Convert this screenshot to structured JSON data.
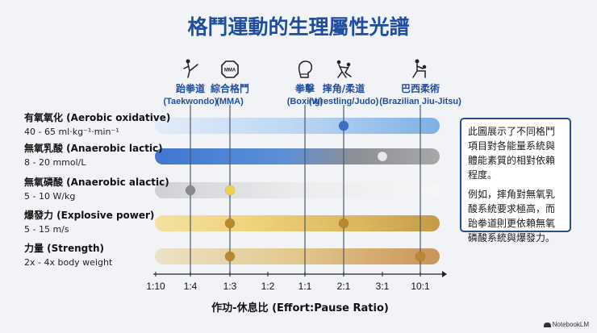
{
  "title": "格鬥運動的生理屬性光譜",
  "callout": {
    "paragraphs": [
      "此圖展示了不同格鬥項目對各能量系統與體能素質的相對依賴程度。",
      "例如，摔角對無氧乳酸系統要求極高，而跆拳道則更依賴無氧磷酸系統與爆發力。"
    ]
  },
  "brand": "NotebookLM",
  "colors": {
    "title": "#1f4e9e",
    "label_blue": "#1f4e9e",
    "dot_dark_blue": "#3b6fc4",
    "dot_gray": "#8a8a8a",
    "dot_light": "#e8e8e8",
    "dot_yellow": "#f2cf4a",
    "dot_gold": "#b8892e"
  },
  "chart_data": {
    "type": "scatter",
    "xlabel": "作功-休息比 (Effort:Pause Ratio)",
    "x_ticks": [
      "1:10",
      "1:4",
      "1:3",
      "1:2",
      "1:1",
      "2:1",
      "3:1",
      "10:1"
    ],
    "sports": [
      {
        "name_zh": "跆拳道",
        "name_en": "(Taekwondo)",
        "ratio": "1:4",
        "icon": "kick-icon"
      },
      {
        "name_zh": "綜合格鬥",
        "name_en": "(MMA)",
        "ratio": "1:3",
        "icon": "octagon-mma-icon"
      },
      {
        "name_zh": "拳擊",
        "name_en": "(Boxing)",
        "ratio": "1:1",
        "icon": "boxing-glove-icon"
      },
      {
        "name_zh": "摔角/柔道",
        "name_en": "(Wrestling/Judo)",
        "ratio": "2:1",
        "icon": "wrestling-icon"
      },
      {
        "name_zh": "巴西柔術",
        "name_en": "(Brazilian Jiu-Jitsu)",
        "ratio": "10:1",
        "icon": "jiu-jitsu-icon"
      }
    ],
    "attributes": [
      {
        "name": "有氧氧化 (Aerobic oxidative)",
        "range": "40 - 65 ml·kg⁻¹·min⁻¹",
        "bar": "aerobic",
        "points": [
          {
            "ratio": "2:1",
            "color": "dot_dark_blue"
          }
        ]
      },
      {
        "name": "無氧乳酸 (Anaerobic lactic)",
        "range": "8 - 20 mmol/L",
        "bar": "lactic",
        "points": [
          {
            "ratio": "3:1",
            "color": "dot_light"
          }
        ]
      },
      {
        "name": "無氧磷酸 (Anaerobic alactic)",
        "range": "5 - 10 W/kg",
        "bar": "alactic",
        "points": [
          {
            "ratio": "1:4",
            "color": "dot_gray"
          },
          {
            "ratio": "1:3",
            "color": "dot_yellow"
          }
        ]
      },
      {
        "name": "爆發力 (Explosive power)",
        "range": "5 - 15 m/s",
        "bar": "power",
        "points": [
          {
            "ratio": "1:3",
            "color": "dot_gold"
          },
          {
            "ratio": "2:1",
            "color": "dot_gold"
          }
        ]
      },
      {
        "name": "力量 (Strength)",
        "range": "2x - 4x body weight",
        "bar": "strength",
        "points": [
          {
            "ratio": "1:3",
            "color": "dot_gold"
          },
          {
            "ratio": "10:1",
            "color": "dot_gold"
          }
        ]
      }
    ]
  }
}
